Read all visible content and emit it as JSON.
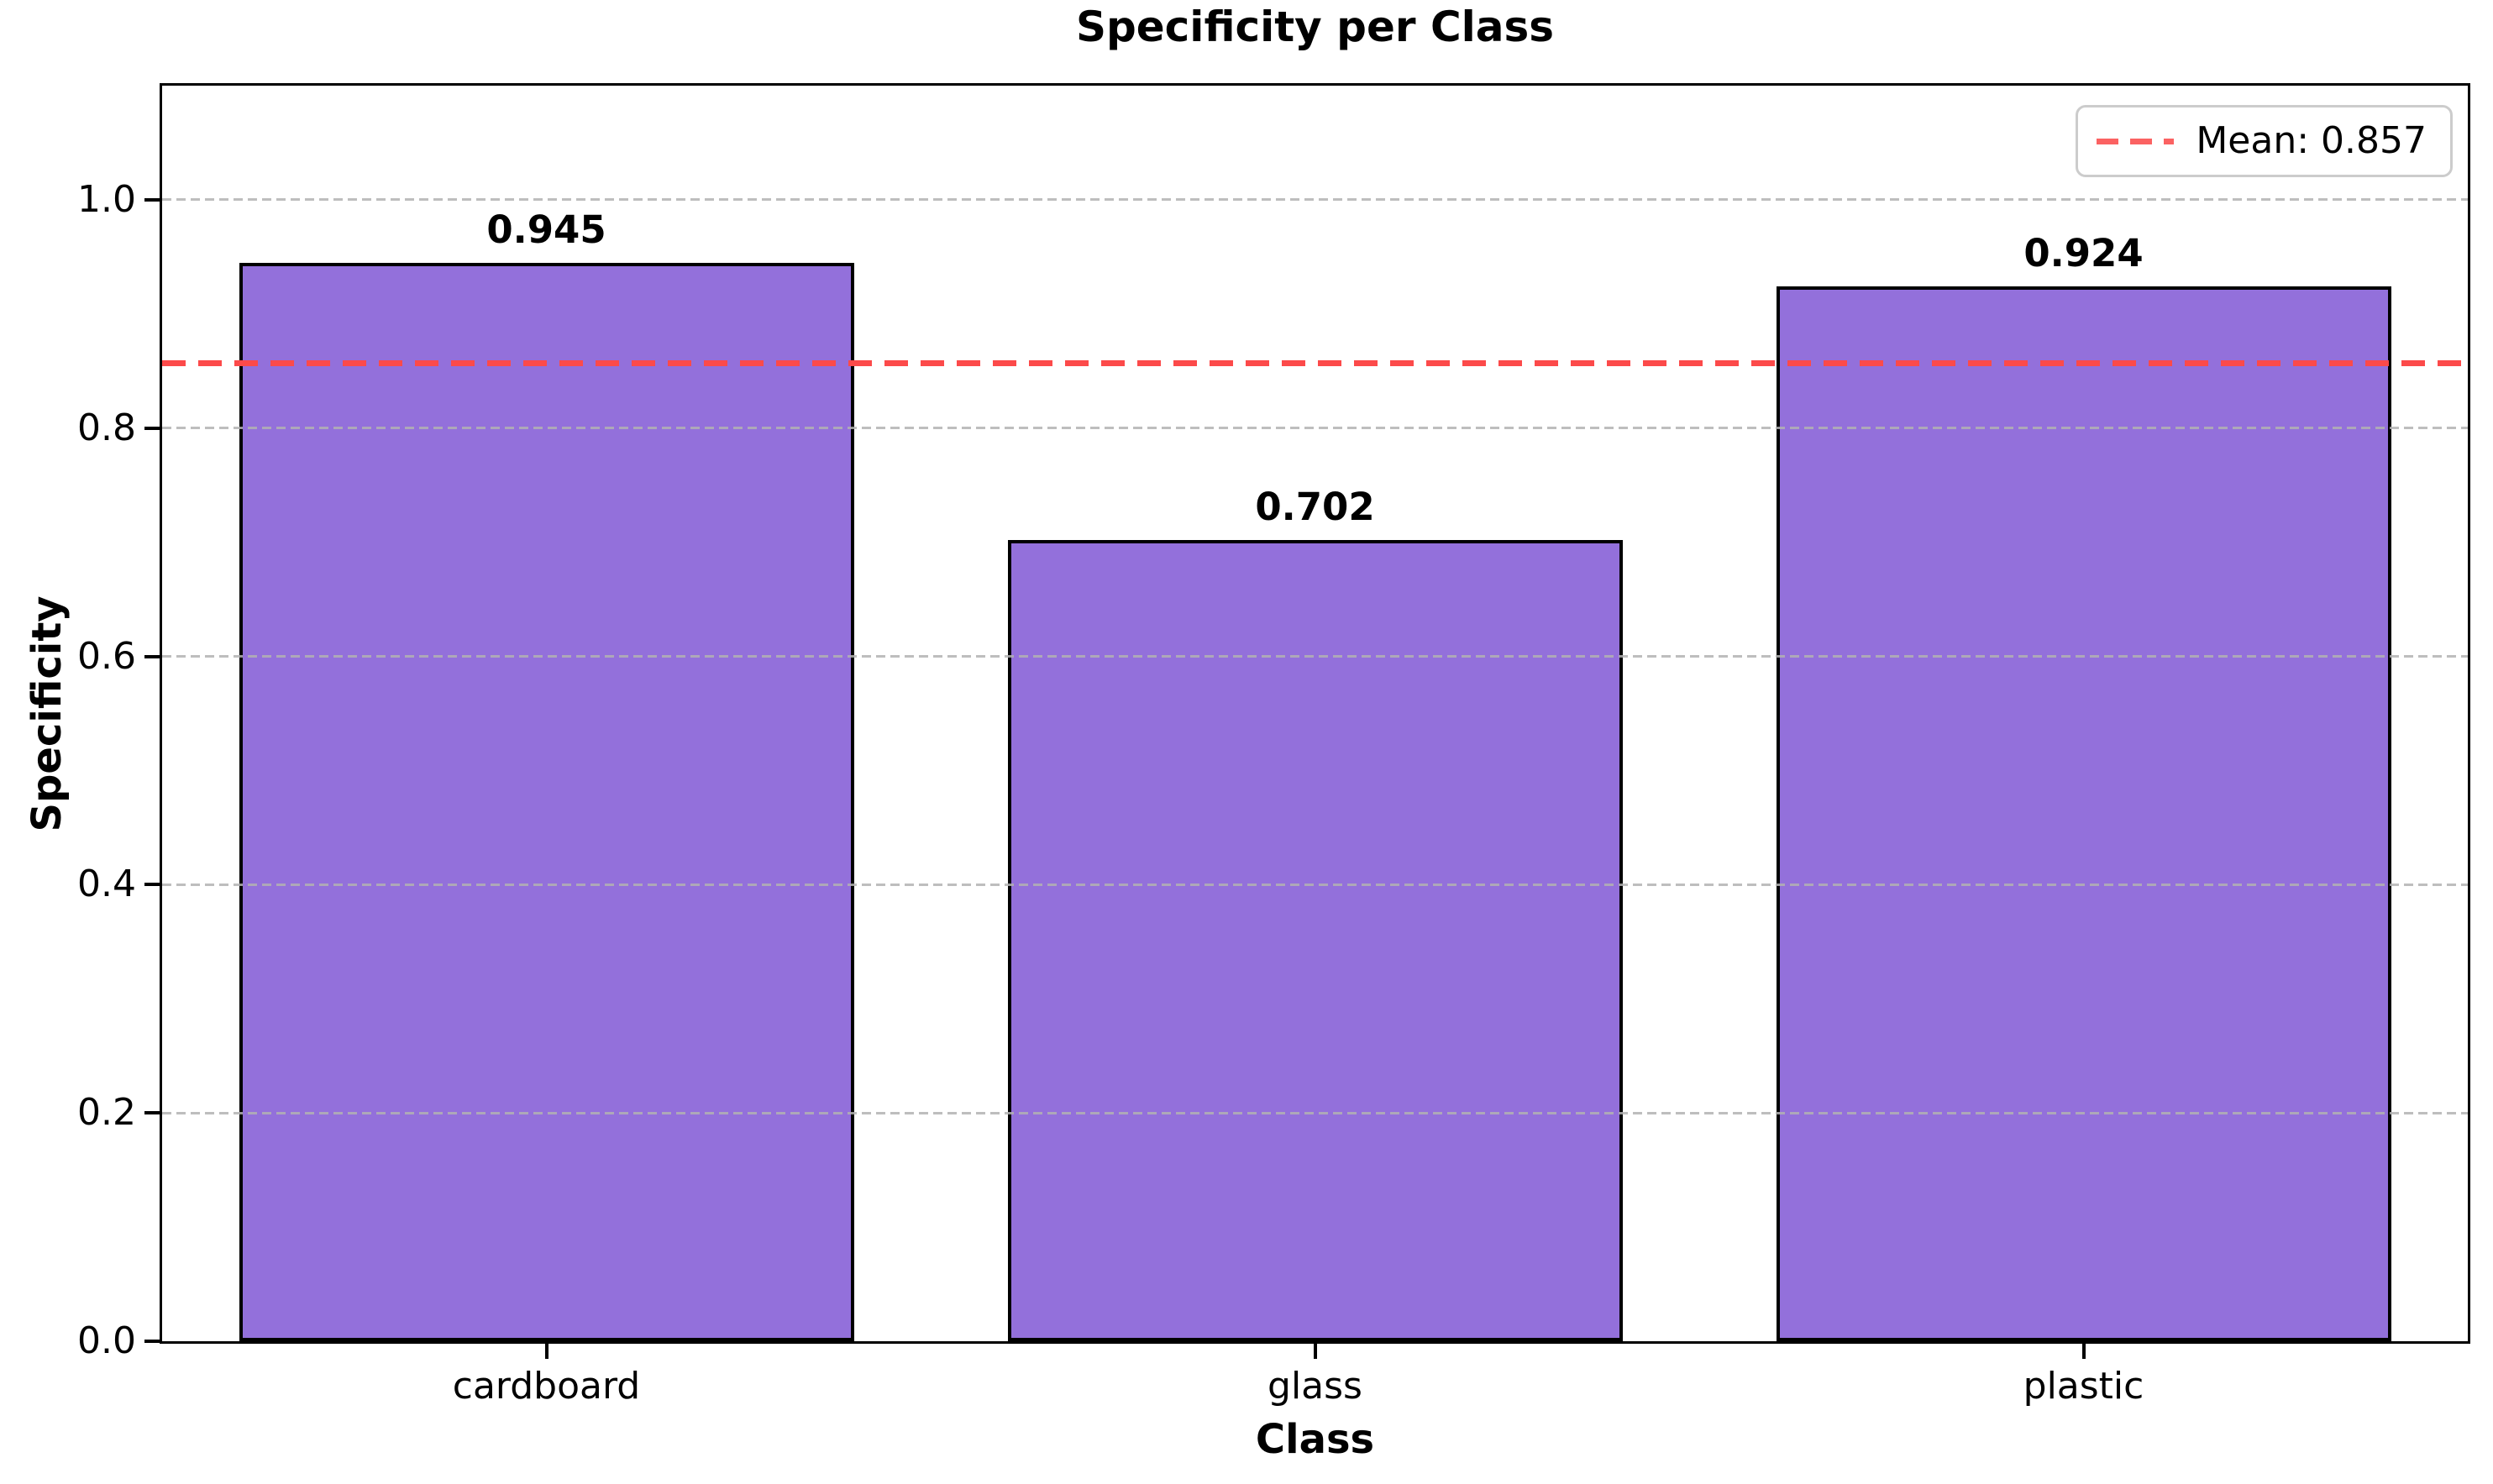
{
  "chart_data": {
    "type": "bar",
    "title": "Specificity per Class",
    "xlabel": "Class",
    "ylabel": "Specificity",
    "categories": [
      "cardboard",
      "glass",
      "plastic"
    ],
    "values": [
      0.945,
      0.702,
      0.924
    ],
    "value_labels": [
      "0.945",
      "0.702",
      "0.924"
    ],
    "mean_line": {
      "value": 0.857,
      "style": "dashed",
      "color": "#fc4a4a"
    },
    "legend": {
      "label": "Mean: 0.857",
      "position": "upper right"
    },
    "yticks": [
      0.0,
      0.2,
      0.4,
      0.6,
      0.8,
      1.0
    ],
    "ytick_labels": [
      "0.0",
      "0.2",
      "0.4",
      "0.6",
      "0.8",
      "1.0"
    ],
    "ylim": [
      0,
      1.1
    ],
    "grid": true,
    "grid_style": "dashed",
    "grid_color": "#b2b2b2",
    "bar_color": "#9370DB",
    "bar_edge_color": "#000000",
    "bar_width_fraction": 0.8,
    "background_color": "#ffffff"
  }
}
